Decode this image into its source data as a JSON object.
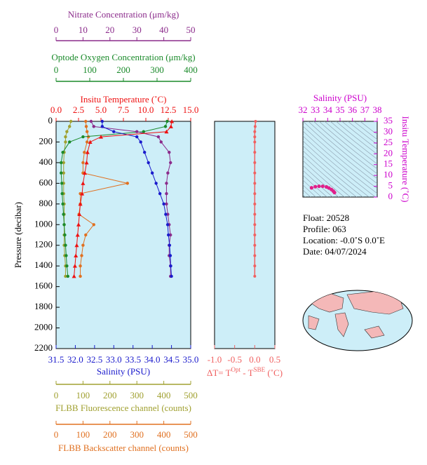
{
  "chart_data": [
    {
      "type": "profile",
      "y_label": "Pressure (decibar)",
      "y": [
        0,
        50,
        100,
        150,
        200,
        300,
        400,
        500,
        600,
        700,
        800,
        900,
        1000,
        1100,
        1200,
        1300,
        1400,
        1500
      ],
      "ylim": [
        0,
        2200
      ],
      "yticks": [
        0,
        200,
        400,
        600,
        800,
        1000,
        1200,
        1400,
        1600,
        1800,
        2000,
        2200
      ],
      "axes": [
        {
          "label": "Nitrate Concentration (μm/kg)",
          "color": "#8b2b8b",
          "lim": [
            0,
            50
          ],
          "ticks": [
            0,
            10,
            20,
            30,
            40,
            50
          ]
        },
        {
          "label": "Optode Oxygen Concentration (μm/kg)",
          "color": "#1a8a2a",
          "lim": [
            0,
            400
          ],
          "ticks": [
            0,
            100,
            200,
            300,
            400
          ]
        },
        {
          "label": "Insitu Temperature (˚C)",
          "color": "#ee1111",
          "lim": [
            0,
            15
          ],
          "ticks": [
            {
              "value": 0,
              "label": "0.0"
            },
            2.5,
            {
              "value": 5,
              "label": "5.0"
            },
            7.5,
            {
              "value": 10,
              "label": "10.0"
            },
            12.5,
            {
              "value": 15,
              "label": "15.0"
            }
          ]
        },
        {
          "label": "Salinity (PSU)",
          "color": "#1a1acc",
          "lim": [
            31.5,
            35
          ],
          "ticks": [
            31.5,
            {
              "value": 32,
              "label": "32.0"
            },
            32.5,
            {
              "value": 33,
              "label": "33.0"
            },
            33.5,
            {
              "value": 34,
              "label": "34.0"
            },
            34.5,
            {
              "value": 35,
              "label": "35.0"
            }
          ]
        },
        {
          "label": "FLBB Fluorescence channel (counts)",
          "color": "#a0a030",
          "lim": [
            0,
            500
          ],
          "ticks": [
            0,
            100,
            200,
            300,
            400,
            500
          ]
        },
        {
          "label": "FLBB Backscatter channel (counts)",
          "color": "#e07020",
          "lim": [
            0,
            500
          ],
          "ticks": [
            0,
            100,
            200,
            300,
            400,
            500
          ]
        }
      ],
      "series": [
        {
          "axis": 4,
          "color": "#a0a030",
          "values": [
            55,
            50,
            40,
            35,
            35,
            30,
            28,
            28,
            28,
            28,
            30,
            30,
            30,
            30,
            30,
            32,
            35,
            35
          ]
        },
        {
          "axis": 5,
          "color": "#e07020",
          "values": [
            110,
            112,
            115,
            120,
            115,
            105,
            100,
            100,
            265,
            90,
            90,
            85,
            140,
            110,
            100,
            95,
            90,
            90
          ]
        },
        {
          "axis": 1,
          "color": "#1a8a2a",
          "values": [
            330,
            325,
            260,
            80,
            40,
            20,
            15,
            15,
            17,
            18,
            20,
            22,
            24,
            26,
            28,
            30,
            32,
            35
          ]
        },
        {
          "axis": 0,
          "color": "#8b2b8b",
          "values": [
            13,
            14,
            30,
            38,
            39,
            42,
            42.5,
            41.5,
            41,
            41,
            41,
            41.5,
            42,
            42.5,
            42,
            42,
            42.5,
            42.5
          ]
        },
        {
          "axis": 3,
          "color": "#1a1acc",
          "values": [
            32.7,
            32.7,
            33,
            33.6,
            33.7,
            33.8,
            33.9,
            34,
            34.1,
            34.2,
            34.3,
            34.35,
            34.4,
            34.42,
            34.45,
            34.47,
            34.48,
            34.5
          ]
        },
        {
          "axis": 2,
          "color": "#ee1111",
          "marker": "triangle",
          "values": [
            12.9,
            12.8,
            12.3,
            5,
            3.8,
            3.5,
            3.4,
            3.2,
            3,
            2.9,
            2.7,
            2.6,
            2.5,
            2.4,
            2.3,
            2.2,
            2.1,
            2
          ]
        }
      ]
    },
    {
      "type": "delta",
      "label_parts": [
        "ΔT= T",
        "Opt",
        " - T",
        "SBE",
        " (˚C)"
      ],
      "color": "#f06060",
      "y": [
        0,
        50,
        100,
        150,
        200,
        300,
        400,
        500,
        600,
        700,
        800,
        900,
        1000,
        1100,
        1200,
        1300,
        1400,
        1500
      ],
      "xlim": [
        -1,
        0.5
      ],
      "xticks": [
        {
          "value": -1,
          "label": "-1.0"
        },
        -0.5,
        {
          "value": 0,
          "label": "0.0"
        },
        0.5
      ],
      "values": [
        0.02,
        0.01,
        0,
        0,
        0,
        0,
        0,
        0,
        0,
        0,
        0,
        0,
        0,
        0,
        0,
        0,
        0,
        0
      ]
    },
    {
      "type": "scatter",
      "x_label": "Salinity (PSU)",
      "y_label": "Insitu Temperature (˚C)",
      "color": "#e0208a",
      "xlim": [
        32,
        38
      ],
      "xticks": [
        32,
        33,
        34,
        35,
        36,
        37,
        38
      ],
      "ylim": [
        0,
        35
      ],
      "yticks": [
        0,
        5,
        10,
        15,
        20,
        25,
        30,
        35
      ],
      "x": [
        32.7,
        33,
        33.3,
        33.6,
        33.9,
        34.1,
        34.3,
        34.45,
        34.55
      ],
      "y": [
        4.3,
        4.8,
        5,
        5,
        4.7,
        4.2,
        3.5,
        2.8,
        2.1
      ]
    }
  ],
  "info": [
    "Float:  20528",
    "Profile:  063",
    "Location:  -0.0˚S   0.0˚E",
    "Date:  04/07/2024"
  ]
}
